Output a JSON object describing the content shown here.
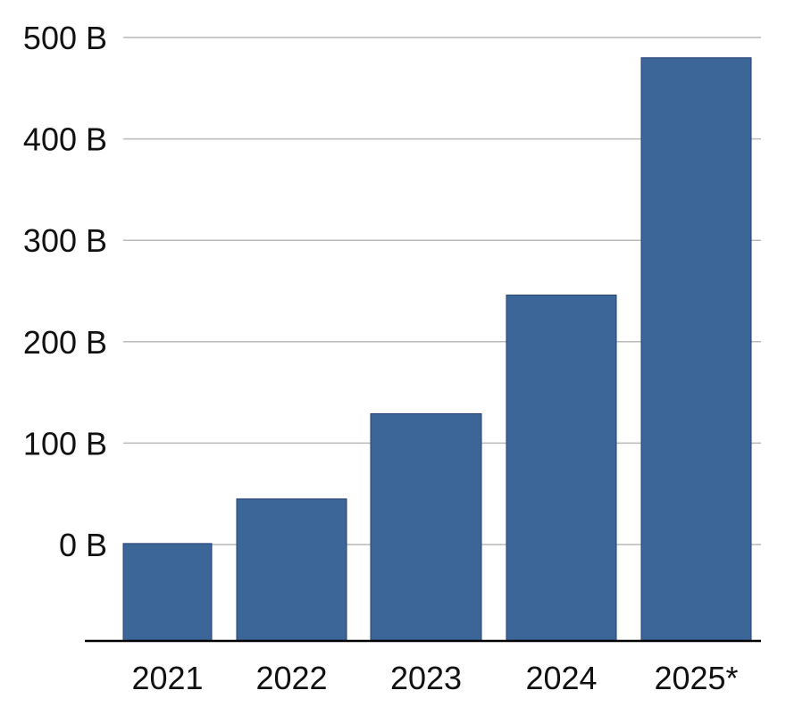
{
  "chart_data": {
    "type": "bar",
    "title": "",
    "xlabel": "",
    "ylabel": "",
    "categories": [
      "2021",
      "2022",
      "2023",
      "2024",
      "2025*"
    ],
    "values": [
      1,
      45,
      129,
      246,
      480
    ],
    "y_ticks": [
      0,
      100,
      200,
      300,
      400,
      500
    ],
    "y_tick_labels": [
      "0 B",
      "100 B",
      "200 B",
      "300 B",
      "400 B",
      "500 B"
    ],
    "ylim": [
      -95,
      500
    ],
    "grid": true,
    "legend": "none",
    "bar_color": "#3c6698",
    "bar_edge_color": "#253f73"
  }
}
